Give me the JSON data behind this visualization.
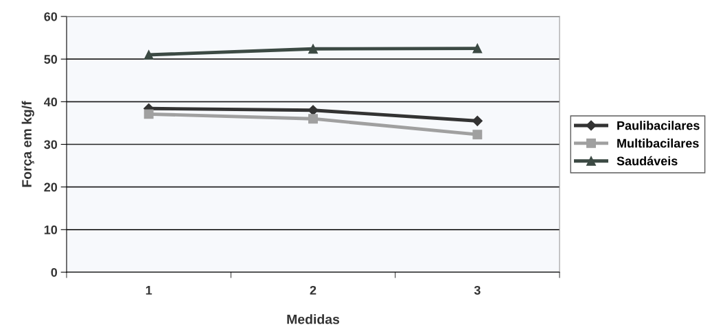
{
  "chart_data": {
    "type": "line",
    "xlabel": "Medidas",
    "ylabel": "Força em kg/f",
    "categories": [
      "1",
      "2",
      "3"
    ],
    "series": [
      {
        "name": "Paulibacilares",
        "color": "#333333",
        "marker": "diamond",
        "values": [
          38.4,
          38.0,
          35.5
        ]
      },
      {
        "name": "Multibacilares",
        "color": "#a0a0a0",
        "marker": "square",
        "values": [
          37.1,
          36.0,
          32.3
        ]
      },
      {
        "name": "Saudáveis",
        "color": "#3c4a44",
        "marker": "triangle",
        "values": [
          51.0,
          52.4,
          52.5
        ]
      }
    ],
    "ylim": [
      0,
      60
    ],
    "yticks": [
      0,
      10,
      20,
      30,
      40,
      50,
      60
    ],
    "grid": "y",
    "legend": "right"
  }
}
